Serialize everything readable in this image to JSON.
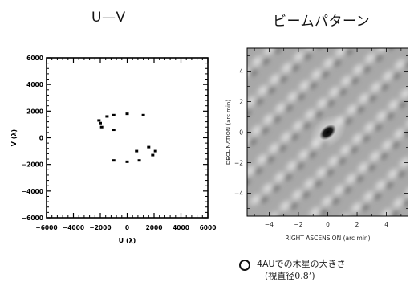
{
  "titles": {
    "left": "U—V",
    "right": "ビームパターン"
  },
  "legend": {
    "line1": "4AUでの木星の大きさ",
    "line2": "(視直径0.8’)"
  },
  "chart_data": [
    {
      "type": "scatter",
      "title": "U—V",
      "xlabel": "U (λ)",
      "ylabel": "V (λ)",
      "xlim": [
        -6000,
        6000
      ],
      "ylim": [
        -6000,
        6000
      ],
      "xticks": [
        "−6000",
        "−4000",
        "−2000",
        "0",
        "2000",
        "4000",
        "6000"
      ],
      "yticks": [
        "6000",
        "4000",
        "2000",
        "0",
        "−2000",
        "−4000",
        "−6000"
      ],
      "grid": false,
      "points": [
        [
          -2100,
          1300
        ],
        [
          -2000,
          1100
        ],
        [
          -1900,
          800
        ],
        [
          -1500,
          1600
        ],
        [
          -1000,
          1700
        ],
        [
          -1000,
          600
        ],
        [
          0,
          1800
        ],
        [
          1200,
          1700
        ],
        [
          -1000,
          -1700
        ],
        [
          0,
          -1800
        ],
        [
          700,
          -1000
        ],
        [
          900,
          -1700
        ],
        [
          1600,
          -700
        ],
        [
          1900,
          -1300
        ],
        [
          2100,
          -1000
        ]
      ]
    },
    {
      "type": "heatmap",
      "title": "ビームパターン",
      "xlabel": "RIGHT ASCENSION (arc min)",
      "ylabel": "DECLINATION (arc min)",
      "xlim": [
        -5.5,
        5.5
      ],
      "ylim": [
        -5.5,
        5.5
      ],
      "xticks": [
        "−4",
        "−2",
        "0",
        "2",
        "4"
      ],
      "yticks": [
        "4",
        "2",
        "0",
        "−2",
        "−4"
      ],
      "colormap": "grayscale",
      "peak": [
        0,
        0
      ]
    }
  ]
}
